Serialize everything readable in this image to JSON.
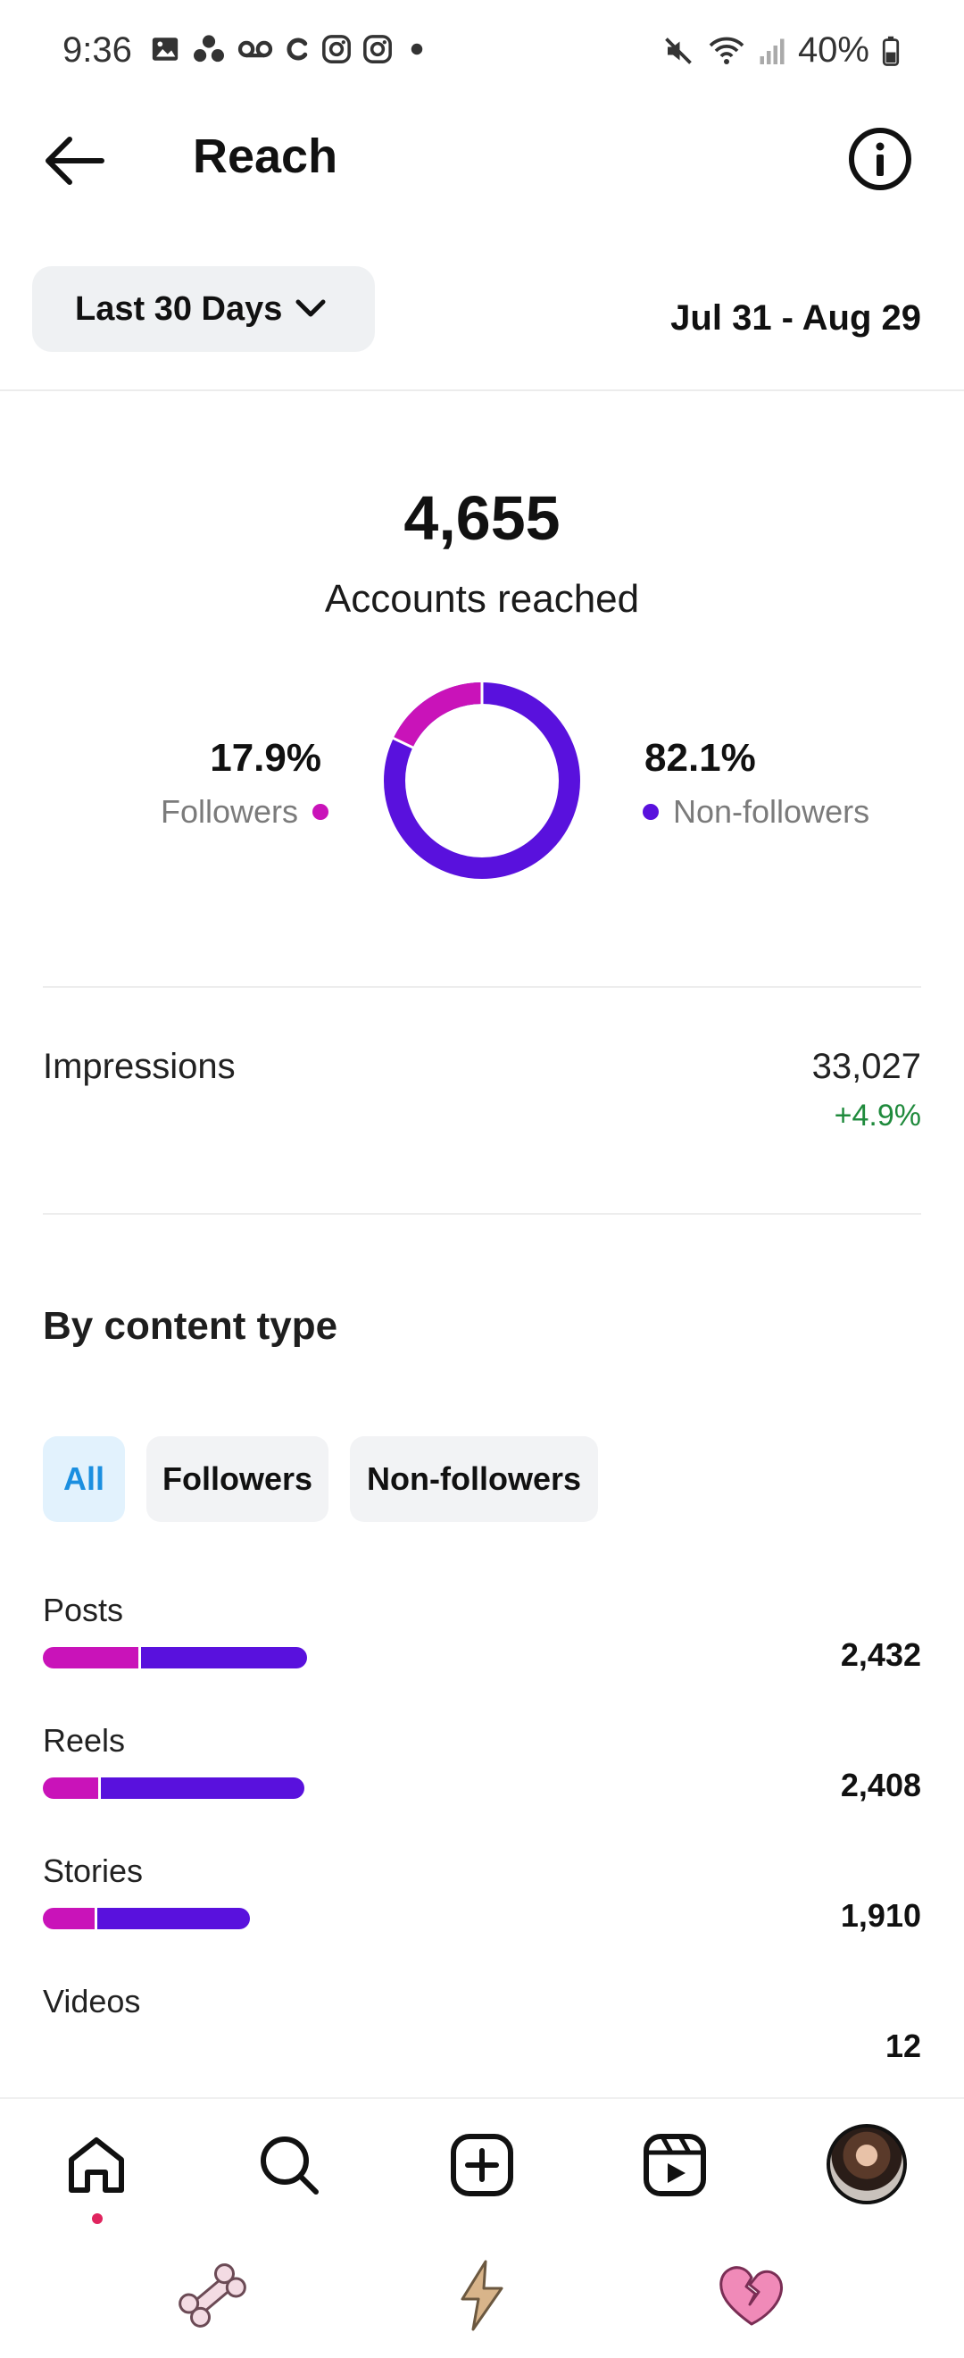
{
  "status_bar": {
    "time": "9:36",
    "left_icons": [
      "gallery-icon",
      "dots-icon",
      "voicemail-icon",
      "c-icon",
      "instagram-icon",
      "instagram-icon",
      "dot-icon"
    ],
    "battery": "40%"
  },
  "header": {
    "title": "Reach"
  },
  "range": {
    "selected": "Last 30 Days",
    "dates": "Jul 31 - Aug 29"
  },
  "summary": {
    "accounts_reached": "4,655",
    "accounts_label": "Accounts reached",
    "followers_pct": "17.9%",
    "followers_label": "Followers",
    "nonfollowers_pct": "82.1%",
    "nonfollowers_label": "Non-followers",
    "followers_fraction": 0.179,
    "colors": {
      "followers": "#c913b9",
      "nonfollowers": "#5911dd"
    }
  },
  "impressions": {
    "label": "Impressions",
    "value": "33,027",
    "change": "+4.9%"
  },
  "content_type": {
    "title": "By content type",
    "filters": [
      "All",
      "Followers",
      "Non-followers"
    ],
    "active_filter": "All",
    "items": [
      {
        "label": "Posts",
        "value": "2,432",
        "amount": 2432,
        "followers_fraction": 0.36
      },
      {
        "label": "Reels",
        "value": "2,408",
        "amount": 2408,
        "followers_fraction": 0.21
      },
      {
        "label": "Stories",
        "value": "1,910",
        "amount": 1910,
        "followers_fraction": 0.25
      },
      {
        "label": "Videos",
        "value": "12",
        "amount": 12,
        "followers_fraction": 0
      }
    ]
  },
  "bottom_nav": [
    "home-icon",
    "search-icon",
    "create-icon",
    "reels-icon",
    "profile-avatar"
  ],
  "system_nav": [
    "bone-icon",
    "bolt-icon",
    "broken-heart-icon"
  ]
}
